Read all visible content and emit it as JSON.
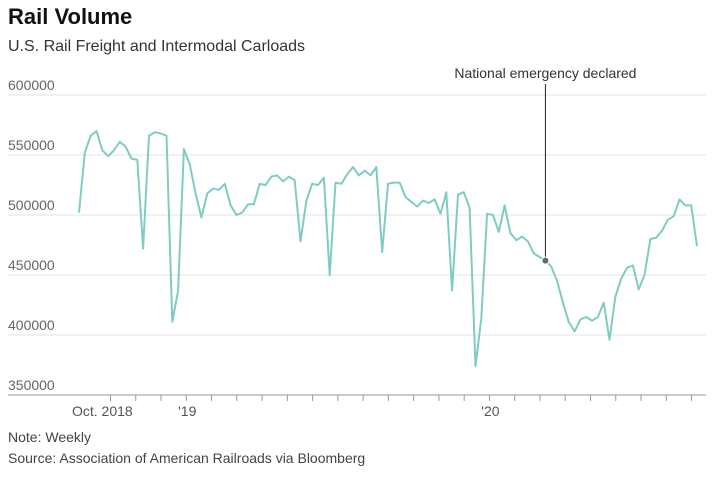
{
  "title": "Rail Volume",
  "subtitle": "U.S. Rail Freight and Intermodal Carloads",
  "note": "Note: Weekly",
  "source": "Source: Association of American Railroads via Bloomberg",
  "colors": {
    "line": "#7fcdc1",
    "grid": "#e6e6e6",
    "axis": "#999999",
    "annotation": "#222222"
  },
  "chart_data": {
    "type": "line",
    "title": "Rail Volume",
    "subtitle": "U.S. Rail Freight and Intermodal Carloads",
    "ylim": [
      350000,
      600000
    ],
    "yticks": [
      350000,
      400000,
      450000,
      500000,
      550000,
      600000
    ],
    "ytick_labels": [
      "350000",
      "400000",
      "450000",
      "500000",
      "550000",
      "600000"
    ],
    "grid": true,
    "x_tick_labels": [
      {
        "index": 4,
        "label": "Oct. 2018"
      },
      {
        "index": 17,
        "label": "'19"
      },
      {
        "index": 69,
        "label": "'20"
      }
    ],
    "annotation": {
      "text": "National emergency declared",
      "index": 80
    },
    "series": [
      {
        "values": [
          502000,
          552000,
          566000,
          570000,
          554000,
          549000,
          554000,
          561000,
          557000,
          547000,
          546000,
          472000,
          566000,
          569000,
          568000,
          566000,
          411000,
          437000,
          555000,
          542000,
          518000,
          498000,
          518000,
          522000,
          521000,
          526000,
          508000,
          500000,
          502000,
          509000,
          509000,
          526000,
          525000,
          532000,
          533000,
          528000,
          532000,
          529000,
          478000,
          512000,
          526000,
          525000,
          531000,
          450000,
          527000,
          526000,
          534000,
          540000,
          533000,
          537000,
          533000,
          540000,
          469000,
          526000,
          527000,
          527000,
          515000,
          511000,
          507000,
          512000,
          510000,
          513000,
          501000,
          519000,
          437000,
          517000,
          519000,
          506000,
          374000,
          414000,
          501000,
          500000,
          486000,
          508000,
          485000,
          479000,
          482000,
          478000,
          468000,
          465000,
          462000,
          457000,
          445000,
          427000,
          411000,
          403000,
          413000,
          415000,
          412000,
          415000,
          427000,
          396000,
          432000,
          447000,
          456000,
          458000,
          438000,
          450000,
          480000,
          481000,
          487000,
          496000,
          499000,
          513000,
          508000,
          508000,
          474000
        ]
      }
    ]
  }
}
